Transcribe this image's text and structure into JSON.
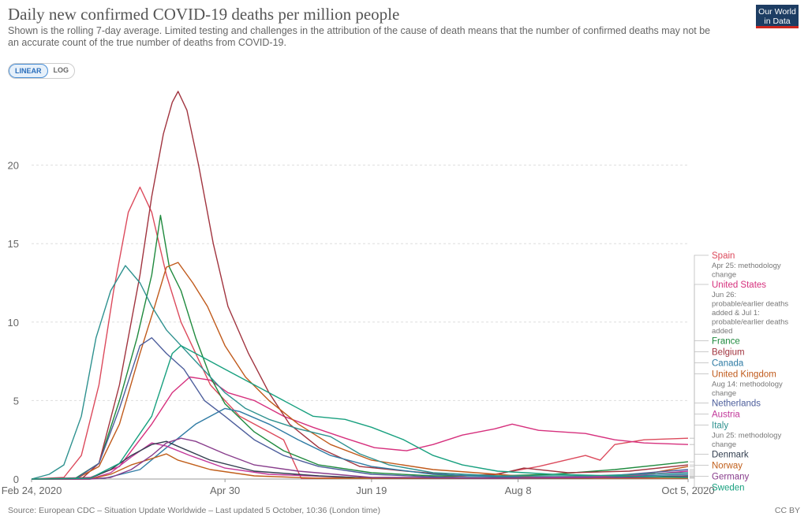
{
  "header": {
    "title": "Daily new confirmed COVID-19 deaths per million people",
    "subtitle": "Shown is the rolling 7-day average. Limited testing and challenges in the attribution of the cause of death means that the number of confirmed deaths may not be an accurate count of the true number of deaths from COVID-19.",
    "logo_line1": "Our World",
    "logo_line2": "in Data"
  },
  "toggle": {
    "linear": "LINEAR",
    "log": "LOG"
  },
  "footer": {
    "source": "Source: European CDC – Situation Update Worldwide – Last updated 5 October, 10:36 (London time)",
    "license": "CC BY"
  },
  "chart_data": {
    "type": "line",
    "x_range": [
      "2020-02-24",
      "2020-10-05"
    ],
    "ylim": [
      0,
      25
    ],
    "y_ticks": [
      0,
      5,
      10,
      15,
      20
    ],
    "x_ticks": [
      {
        "label": "Feb 24, 2020",
        "date": "2020-02-24"
      },
      {
        "label": "Apr 30",
        "date": "2020-04-30"
      },
      {
        "label": "Jun 19",
        "date": "2020-06-19"
      },
      {
        "label": "Aug 8",
        "date": "2020-08-08"
      },
      {
        "label": "Oct 5, 2020",
        "date": "2020-10-05"
      }
    ],
    "grid": true,
    "legend_placement": "right",
    "series": [
      {
        "name": "Spain",
        "color": "#dc4a5c",
        "note": "Apr 25: methodology change",
        "points": [
          [
            "2020-02-24",
            0
          ],
          [
            "2020-03-06",
            0.1
          ],
          [
            "2020-03-12",
            1.5
          ],
          [
            "2020-03-18",
            6
          ],
          [
            "2020-03-23",
            12
          ],
          [
            "2020-03-28",
            17
          ],
          [
            "2020-04-01",
            18.6
          ],
          [
            "2020-04-05",
            17
          ],
          [
            "2020-04-10",
            13
          ],
          [
            "2020-04-15",
            10
          ],
          [
            "2020-04-20",
            8
          ],
          [
            "2020-04-25",
            6
          ],
          [
            "2020-04-30",
            5
          ],
          [
            "2020-05-05",
            4
          ],
          [
            "2020-05-10",
            3.5
          ],
          [
            "2020-05-15",
            3
          ],
          [
            "2020-05-20",
            2.5
          ],
          [
            "2020-05-26",
            0.05
          ],
          [
            "2020-06-05",
            0.05
          ],
          [
            "2020-06-19",
            0.1
          ],
          [
            "2020-07-10",
            0.1
          ],
          [
            "2020-07-31",
            0.3
          ],
          [
            "2020-08-15",
            0.8
          ],
          [
            "2020-08-31",
            1.5
          ],
          [
            "2020-09-05",
            1.2
          ],
          [
            "2020-09-10",
            2.2
          ],
          [
            "2020-09-20",
            2.5
          ],
          [
            "2020-10-05",
            2.6
          ]
        ]
      },
      {
        "name": "United States",
        "color": "#d6307d",
        "note": "Jun 26: probable/earlier deaths added & Jul 1: probable/earlier deaths added",
        "points": [
          [
            "2020-02-24",
            0
          ],
          [
            "2020-03-15",
            0.1
          ],
          [
            "2020-03-25",
            0.8
          ],
          [
            "2020-04-05",
            3.5
          ],
          [
            "2020-04-12",
            5.5
          ],
          [
            "2020-04-18",
            6.5
          ],
          [
            "2020-04-25",
            6.3
          ],
          [
            "2020-05-01",
            5.5
          ],
          [
            "2020-05-10",
            5
          ],
          [
            "2020-05-20",
            4
          ],
          [
            "2020-05-30",
            3.3
          ],
          [
            "2020-06-10",
            2.6
          ],
          [
            "2020-06-20",
            2
          ],
          [
            "2020-07-01",
            1.8
          ],
          [
            "2020-07-10",
            2.2
          ],
          [
            "2020-07-20",
            2.8
          ],
          [
            "2020-07-31",
            3.2
          ],
          [
            "2020-08-06",
            3.5
          ],
          [
            "2020-08-15",
            3.1
          ],
          [
            "2020-08-31",
            2.9
          ],
          [
            "2020-09-10",
            2.5
          ],
          [
            "2020-09-20",
            2.3
          ],
          [
            "2020-10-05",
            2.2
          ]
        ]
      },
      {
        "name": "France",
        "color": "#1f8a3e",
        "note": "",
        "points": [
          [
            "2020-02-24",
            0
          ],
          [
            "2020-03-10",
            0.05
          ],
          [
            "2020-03-18",
            1
          ],
          [
            "2020-03-25",
            5
          ],
          [
            "2020-03-31",
            9
          ],
          [
            "2020-04-05",
            13
          ],
          [
            "2020-04-08",
            16.8
          ],
          [
            "2020-04-11",
            13.5
          ],
          [
            "2020-04-15",
            12
          ],
          [
            "2020-04-20",
            9
          ],
          [
            "2020-04-25",
            6.5
          ],
          [
            "2020-04-30",
            4.8
          ],
          [
            "2020-05-10",
            3
          ],
          [
            "2020-05-20",
            1.8
          ],
          [
            "2020-06-01",
            0.9
          ],
          [
            "2020-06-19",
            0.4
          ],
          [
            "2020-07-10",
            0.2
          ],
          [
            "2020-08-01",
            0.2
          ],
          [
            "2020-08-20",
            0.3
          ],
          [
            "2020-09-10",
            0.6
          ],
          [
            "2020-09-25",
            0.9
          ],
          [
            "2020-10-05",
            1.1
          ]
        ]
      },
      {
        "name": "Belgium",
        "color": "#a1343f",
        "note": "",
        "points": [
          [
            "2020-02-24",
            0
          ],
          [
            "2020-03-12",
            0
          ],
          [
            "2020-03-18",
            1
          ],
          [
            "2020-03-25",
            6
          ],
          [
            "2020-04-01",
            13
          ],
          [
            "2020-04-05",
            18
          ],
          [
            "2020-04-09",
            22
          ],
          [
            "2020-04-12",
            24
          ],
          [
            "2020-04-14",
            24.7
          ],
          [
            "2020-04-17",
            23.5
          ],
          [
            "2020-04-21",
            20
          ],
          [
            "2020-04-26",
            15
          ],
          [
            "2020-05-01",
            11
          ],
          [
            "2020-05-08",
            8
          ],
          [
            "2020-05-15",
            5.5
          ],
          [
            "2020-05-22",
            3.5
          ],
          [
            "2020-06-01",
            2
          ],
          [
            "2020-06-15",
            0.8
          ],
          [
            "2020-07-01",
            0.5
          ],
          [
            "2020-07-20",
            0.2
          ],
          [
            "2020-08-01",
            0.3
          ],
          [
            "2020-08-10",
            0.7
          ],
          [
            "2020-08-25",
            0.4
          ],
          [
            "2020-09-15",
            0.5
          ],
          [
            "2020-10-05",
            0.9
          ]
        ]
      },
      {
        "name": "Canada",
        "color": "#2f7ba4",
        "note": "",
        "points": [
          [
            "2020-02-24",
            0
          ],
          [
            "2020-03-20",
            0.05
          ],
          [
            "2020-04-01",
            0.6
          ],
          [
            "2020-04-10",
            2
          ],
          [
            "2020-04-20",
            3.5
          ],
          [
            "2020-04-30",
            4.5
          ],
          [
            "2020-05-05",
            4.3
          ],
          [
            "2020-05-15",
            3.5
          ],
          [
            "2020-05-25",
            2.5
          ],
          [
            "2020-06-05",
            1.5
          ],
          [
            "2020-06-19",
            0.8
          ],
          [
            "2020-07-10",
            0.3
          ],
          [
            "2020-08-01",
            0.15
          ],
          [
            "2020-09-01",
            0.1
          ],
          [
            "2020-10-05",
            0.3
          ]
        ]
      },
      {
        "name": "United Kingdom",
        "color": "#c05a1b",
        "note": "Aug 14: methodology change",
        "points": [
          [
            "2020-02-24",
            0
          ],
          [
            "2020-03-10",
            0
          ],
          [
            "2020-03-18",
            0.8
          ],
          [
            "2020-03-25",
            3.5
          ],
          [
            "2020-04-01",
            8
          ],
          [
            "2020-04-06",
            11
          ],
          [
            "2020-04-10",
            13.5
          ],
          [
            "2020-04-14",
            13.8
          ],
          [
            "2020-04-19",
            12.5
          ],
          [
            "2020-04-24",
            11
          ],
          [
            "2020-04-30",
            8.5
          ],
          [
            "2020-05-07",
            6.5
          ],
          [
            "2020-05-15",
            5
          ],
          [
            "2020-05-25",
            3.5
          ],
          [
            "2020-06-05",
            2.2
          ],
          [
            "2020-06-19",
            1.2
          ],
          [
            "2020-07-10",
            0.6
          ],
          [
            "2020-08-01",
            0.3
          ],
          [
            "2020-08-14",
            0.1
          ],
          [
            "2020-09-01",
            0.1
          ],
          [
            "2020-09-20",
            0.3
          ],
          [
            "2020-10-05",
            0.8
          ]
        ]
      },
      {
        "name": "Netherlands",
        "color": "#4d5e9c",
        "note": "",
        "points": [
          [
            "2020-02-24",
            0
          ],
          [
            "2020-03-10",
            0
          ],
          [
            "2020-03-18",
            1
          ],
          [
            "2020-03-25",
            4.5
          ],
          [
            "2020-04-01",
            8.5
          ],
          [
            "2020-04-05",
            9
          ],
          [
            "2020-04-10",
            8
          ],
          [
            "2020-04-16",
            7
          ],
          [
            "2020-04-23",
            5
          ],
          [
            "2020-04-30",
            4
          ],
          [
            "2020-05-10",
            2.5
          ],
          [
            "2020-05-20",
            1.5
          ],
          [
            "2020-06-01",
            0.8
          ],
          [
            "2020-06-19",
            0.3
          ],
          [
            "2020-07-15",
            0.1
          ],
          [
            "2020-09-01",
            0.1
          ],
          [
            "2020-10-05",
            0.6
          ]
        ]
      },
      {
        "name": "Austria",
        "color": "#c2379a",
        "note": "",
        "points": [
          [
            "2020-02-24",
            0
          ],
          [
            "2020-03-15",
            0
          ],
          [
            "2020-03-22",
            0.4
          ],
          [
            "2020-03-29",
            1.4
          ],
          [
            "2020-04-05",
            2.3
          ],
          [
            "2020-04-10",
            2.1
          ],
          [
            "2020-04-18",
            1.5
          ],
          [
            "2020-04-30",
            0.7
          ],
          [
            "2020-05-15",
            0.3
          ],
          [
            "2020-06-19",
            0.05
          ],
          [
            "2020-08-01",
            0.05
          ],
          [
            "2020-09-15",
            0.2
          ],
          [
            "2020-10-05",
            0.5
          ]
        ]
      },
      {
        "name": "Italy",
        "color": "#2e918f",
        "note": "Jun 25: methodology change",
        "points": [
          [
            "2020-02-24",
            0
          ],
          [
            "2020-03-01",
            0.3
          ],
          [
            "2020-03-06",
            0.9
          ],
          [
            "2020-03-12",
            4
          ],
          [
            "2020-03-17",
            9
          ],
          [
            "2020-03-22",
            12
          ],
          [
            "2020-03-27",
            13.6
          ],
          [
            "2020-04-01",
            12.5
          ],
          [
            "2020-04-05",
            11
          ],
          [
            "2020-04-10",
            9.5
          ],
          [
            "2020-04-15",
            8.5
          ],
          [
            "2020-04-20",
            7.5
          ],
          [
            "2020-04-25",
            6.5
          ],
          [
            "2020-04-30",
            5.5
          ],
          [
            "2020-05-07",
            4.5
          ],
          [
            "2020-05-15",
            3.8
          ],
          [
            "2020-05-25",
            3.2
          ],
          [
            "2020-06-05",
            2.7
          ],
          [
            "2020-06-15",
            1.6
          ],
          [
            "2020-06-25",
            0.9
          ],
          [
            "2020-07-10",
            0.4
          ],
          [
            "2020-08-01",
            0.2
          ],
          [
            "2020-09-01",
            0.2
          ],
          [
            "2020-10-05",
            0.4
          ]
        ]
      },
      {
        "name": "Denmark",
        "color": "#333f50",
        "note": "",
        "points": [
          [
            "2020-02-24",
            0
          ],
          [
            "2020-03-15",
            0.05
          ],
          [
            "2020-03-22",
            0.6
          ],
          [
            "2020-03-29",
            1.5
          ],
          [
            "2020-04-05",
            2.2
          ],
          [
            "2020-04-10",
            2.4
          ],
          [
            "2020-04-15",
            2
          ],
          [
            "2020-04-25",
            1.2
          ],
          [
            "2020-05-10",
            0.5
          ],
          [
            "2020-06-01",
            0.2
          ],
          [
            "2020-06-19",
            0.05
          ],
          [
            "2020-09-01",
            0.05
          ],
          [
            "2020-10-05",
            0.2
          ]
        ]
      },
      {
        "name": "Norway",
        "color": "#c15f1b",
        "note": "",
        "points": [
          [
            "2020-02-24",
            0
          ],
          [
            "2020-03-15",
            0
          ],
          [
            "2020-03-22",
            0.3
          ],
          [
            "2020-03-29",
            0.9
          ],
          [
            "2020-04-05",
            1.3
          ],
          [
            "2020-04-10",
            1.6
          ],
          [
            "2020-04-14",
            1.2
          ],
          [
            "2020-04-25",
            0.6
          ],
          [
            "2020-05-10",
            0.2
          ],
          [
            "2020-06-01",
            0.05
          ],
          [
            "2020-10-05",
            0.05
          ]
        ]
      },
      {
        "name": "Germany",
        "color": "#883d8c",
        "note": "",
        "points": [
          [
            "2020-02-24",
            0
          ],
          [
            "2020-03-15",
            0
          ],
          [
            "2020-03-22",
            0.1
          ],
          [
            "2020-03-29",
            0.6
          ],
          [
            "2020-04-05",
            1.5
          ],
          [
            "2020-04-10",
            2.3
          ],
          [
            "2020-04-15",
            2.6
          ],
          [
            "2020-04-20",
            2.4
          ],
          [
            "2020-04-30",
            1.6
          ],
          [
            "2020-05-10",
            0.9
          ],
          [
            "2020-05-25",
            0.5
          ],
          [
            "2020-06-19",
            0.1
          ],
          [
            "2020-08-01",
            0.05
          ],
          [
            "2020-09-15",
            0.1
          ],
          [
            "2020-10-05",
            0.15
          ]
        ]
      },
      {
        "name": "Sweden",
        "color": "#18a07f",
        "note": "",
        "points": [
          [
            "2020-02-24",
            0
          ],
          [
            "2020-03-15",
            0.05
          ],
          [
            "2020-03-25",
            1
          ],
          [
            "2020-04-05",
            4
          ],
          [
            "2020-04-12",
            8
          ],
          [
            "2020-04-15",
            8.5
          ],
          [
            "2020-04-20",
            8
          ],
          [
            "2020-04-25",
            7.5
          ],
          [
            "2020-04-30",
            7
          ],
          [
            "2020-05-10",
            6
          ],
          [
            "2020-05-20",
            5
          ],
          [
            "2020-05-30",
            4
          ],
          [
            "2020-06-10",
            3.8
          ],
          [
            "2020-06-19",
            3.3
          ],
          [
            "2020-06-30",
            2.5
          ],
          [
            "2020-07-10",
            1.5
          ],
          [
            "2020-07-20",
            0.9
          ],
          [
            "2020-08-01",
            0.5
          ],
          [
            "2020-08-20",
            0.3
          ],
          [
            "2020-09-10",
            0.2
          ],
          [
            "2020-10-05",
            0.1
          ]
        ]
      }
    ]
  }
}
